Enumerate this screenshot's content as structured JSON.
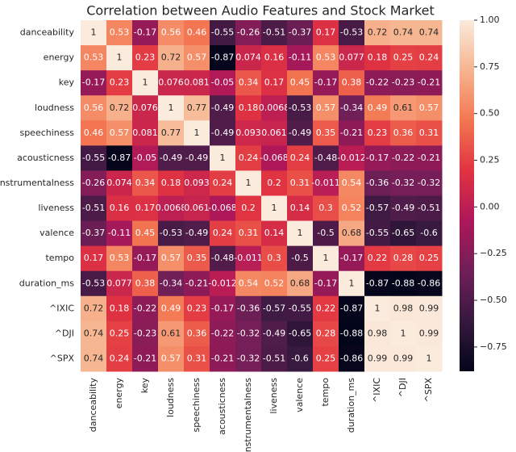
{
  "chart_data": {
    "type": "heatmap",
    "title": "Correlation between Audio Features and Stock Market",
    "categories": [
      "danceability",
      "energy",
      "key",
      "loudness",
      "speechiness",
      "acousticness",
      "instrumentalness",
      "liveness",
      "valence",
      "tempo",
      "duration_ms",
      "^IXIC",
      "^DJI",
      "^SPX"
    ],
    "matrix": [
      [
        1,
        0.53,
        -0.17,
        0.56,
        0.46,
        -0.55,
        -0.26,
        -0.51,
        -0.37,
        0.17,
        -0.53,
        0.72,
        0.74,
        0.74
      ],
      [
        0.53,
        1,
        0.23,
        0.72,
        0.57,
        -0.87,
        0.074,
        0.16,
        -0.11,
        0.53,
        0.077,
        0.18,
        0.25,
        0.24
      ],
      [
        -0.17,
        0.23,
        1,
        0.076,
        0.081,
        -0.05,
        0.34,
        0.17,
        0.45,
        -0.17,
        0.38,
        -0.22,
        -0.23,
        -0.21
      ],
      [
        0.56,
        0.72,
        0.076,
        1,
        0.77,
        -0.49,
        0.18,
        0.0068,
        -0.53,
        0.57,
        -0.34,
        0.49,
        0.61,
        0.57
      ],
      [
        0.46,
        0.57,
        0.081,
        0.77,
        1,
        -0.49,
        0.093,
        0.061,
        -0.49,
        0.35,
        -0.21,
        0.23,
        0.36,
        0.31
      ],
      [
        -0.55,
        -0.87,
        -0.05,
        -0.49,
        -0.49,
        1,
        0.24,
        -0.068,
        0.24,
        -0.48,
        -0.012,
        -0.17,
        -0.22,
        -0.21
      ],
      [
        -0.26,
        0.074,
        0.34,
        0.18,
        0.093,
        0.24,
        1,
        0.2,
        0.31,
        -0.011,
        0.54,
        -0.36,
        -0.32,
        -0.32
      ],
      [
        -0.51,
        0.16,
        0.17,
        0.0068,
        0.061,
        -0.068,
        0.2,
        1,
        0.14,
        0.3,
        0.52,
        -0.57,
        -0.49,
        -0.51
      ],
      [
        -0.37,
        -0.11,
        0.45,
        -0.53,
        -0.49,
        0.24,
        0.31,
        0.14,
        1,
        -0.5,
        0.68,
        -0.55,
        -0.65,
        -0.6
      ],
      [
        0.17,
        0.53,
        -0.17,
        0.57,
        0.35,
        -0.48,
        -0.011,
        0.3,
        -0.5,
        1,
        -0.17,
        0.22,
        0.28,
        0.25
      ],
      [
        -0.53,
        0.077,
        0.38,
        -0.34,
        -0.21,
        -0.012,
        0.54,
        0.52,
        0.68,
        -0.17,
        1,
        -0.87,
        -0.88,
        -0.86
      ],
      [
        0.72,
        0.18,
        -0.22,
        0.49,
        0.23,
        -0.17,
        -0.36,
        -0.57,
        -0.55,
        0.22,
        -0.87,
        1,
        0.98,
        0.99
      ],
      [
        0.74,
        0.25,
        -0.23,
        0.61,
        0.36,
        -0.22,
        -0.32,
        -0.49,
        -0.65,
        0.28,
        -0.88,
        0.98,
        1,
        0.99
      ],
      [
        0.74,
        0.24,
        -0.21,
        0.57,
        0.31,
        -0.21,
        -0.32,
        -0.51,
        -0.6,
        0.25,
        -0.86,
        0.99,
        0.99,
        1
      ]
    ],
    "zlim": [
      -0.88,
      1
    ],
    "zticks": [
      {
        "value": -0.75,
        "label": "−0.75"
      },
      {
        "value": -0.5,
        "label": "−0.50"
      },
      {
        "value": -0.25,
        "label": "−0.25"
      },
      {
        "value": 0,
        "label": "0.00"
      },
      {
        "value": 0.25,
        "label": "0.25"
      },
      {
        "value": 0.5,
        "label": "0.50"
      },
      {
        "value": 0.75,
        "label": "0.75"
      },
      {
        "value": 1,
        "label": "1.00"
      }
    ],
    "colormap": [
      "#03051A",
      "#36193E",
      "#701F57",
      "#AD1759",
      "#E13342",
      "#F37651",
      "#F6B48F",
      "#FAEBDD"
    ]
  }
}
